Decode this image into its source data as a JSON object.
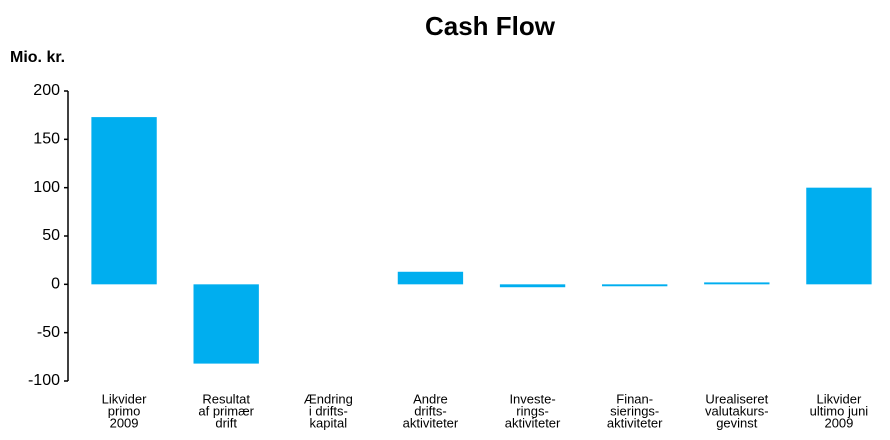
{
  "chart_data": {
    "type": "bar",
    "title": "Cash Flow",
    "y_label": "Mio. kr.",
    "categories": [
      [
        "Likvider",
        "primo",
        "2009"
      ],
      [
        "Resultat",
        "af primær",
        "drift"
      ],
      [
        "Ændring",
        "i drifts-",
        "kapital"
      ],
      [
        "Andre",
        "drifts-",
        "aktiviteter"
      ],
      [
        "Investe-",
        "rings-",
        "aktiviteter"
      ],
      [
        "Finan-",
        "sierings-",
        "aktiviteter"
      ],
      [
        "Urealiseret",
        "valutakurs-",
        "gevinst"
      ],
      [
        "Likvider",
        "ultimo juni",
        "2009"
      ]
    ],
    "values": [
      173,
      -82,
      0,
      13,
      -3,
      -2,
      2,
      100
    ],
    "color": "#00aeef",
    "ylim": [
      -100,
      200
    ],
    "yticks": [
      -100,
      -50,
      0,
      50,
      100,
      150,
      200
    ],
    "grid": false
  }
}
